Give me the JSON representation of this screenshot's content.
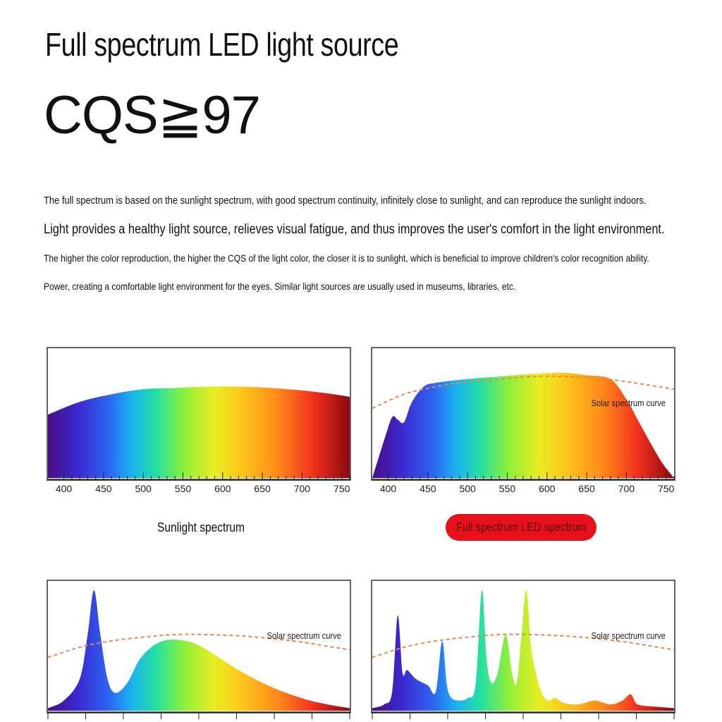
{
  "header": {
    "title": "Full spectrum LED light source",
    "metric": "CQS≧97"
  },
  "paragraphs": [
    "The full spectrum is based on the sunlight spectrum, with good spectrum continuity, infinitely close to sunlight, and can reproduce the sunlight indoors.",
    "Light provides a healthy light source, relieves visual fatigue, and thus improves the user's comfort in the light environment.",
    "The higher the color reproduction, the higher the CQS of the light color, the closer it is to sunlight, which is beneficial to improve children's color recognition ability.",
    "Power, creating a comfortable light environment for the eyes. Similar light sources are usually used in museums, libraries, etc."
  ],
  "colors": {
    "caption_pill_bg": "#e8101a",
    "solar_curve": "#e8874a",
    "frame": "#333333"
  },
  "chart_data": [
    {
      "type": "area",
      "caption": "Sunlight spectrum",
      "ticks": [
        "400",
        "450",
        "500",
        "550",
        "600",
        "650",
        "700",
        "750"
      ],
      "xlim": [
        380,
        760
      ],
      "ylim": [
        0,
        1
      ],
      "series": [
        {
          "x": [
            380,
            420,
            460,
            500,
            540,
            580,
            620,
            660,
            700,
            740,
            760
          ],
          "values": [
            0.5,
            0.6,
            0.66,
            0.7,
            0.71,
            0.72,
            0.72,
            0.71,
            0.69,
            0.66,
            0.64
          ]
        }
      ],
      "solar_curve": null
    },
    {
      "type": "area",
      "caption": "Full spectrum LED spectrum",
      "annotation": "Solar spectrum curve",
      "ticks": [
        "400",
        "450",
        "500",
        "550",
        "600",
        "650",
        "700",
        "750"
      ],
      "xlim": [
        380,
        760
      ],
      "ylim": [
        0,
        1
      ],
      "series": [
        {
          "x": [
            380,
            395,
            405,
            412,
            420,
            430,
            445,
            460,
            500,
            540,
            580,
            620,
            650,
            680,
            700,
            715,
            730,
            745,
            760
          ],
          "values": [
            0.0,
            0.3,
            0.48,
            0.46,
            0.44,
            0.6,
            0.72,
            0.75,
            0.78,
            0.8,
            0.82,
            0.83,
            0.81,
            0.78,
            0.62,
            0.45,
            0.28,
            0.12,
            0.0
          ]
        }
      ],
      "solar_curve": {
        "x": [
          380,
          420,
          460,
          500,
          540,
          580,
          620,
          660,
          700,
          740,
          760
        ],
        "values": [
          0.55,
          0.66,
          0.72,
          0.76,
          0.78,
          0.8,
          0.8,
          0.79,
          0.76,
          0.72,
          0.7
        ]
      }
    },
    {
      "type": "area",
      "caption": "",
      "annotation": "Solar spectrum curve",
      "ticks": [],
      "xlim": [
        380,
        760
      ],
      "ylim": [
        0,
        1
      ],
      "series": [
        {
          "x": [
            380,
            400,
            420,
            430,
            438,
            446,
            455,
            465,
            480,
            495,
            510,
            525,
            540,
            560,
            580,
            600,
            620,
            650,
            680,
            710,
            740,
            760
          ],
          "values": [
            0.02,
            0.08,
            0.25,
            0.6,
            0.95,
            0.6,
            0.25,
            0.14,
            0.22,
            0.4,
            0.5,
            0.55,
            0.56,
            0.54,
            0.48,
            0.4,
            0.32,
            0.22,
            0.14,
            0.08,
            0.04,
            0.02
          ]
        }
      ],
      "solar_curve": {
        "x": [
          380,
          420,
          460,
          500,
          540,
          580,
          620,
          660,
          700,
          740,
          760
        ],
        "values": [
          0.42,
          0.5,
          0.55,
          0.58,
          0.6,
          0.6,
          0.59,
          0.57,
          0.54,
          0.5,
          0.48
        ]
      }
    },
    {
      "type": "area",
      "caption": "",
      "annotation": "Solar spectrum curve",
      "ticks": [],
      "xlim": [
        380,
        760
      ],
      "ylim": [
        0,
        1
      ],
      "series": [
        {
          "x": [
            380,
            395,
            405,
            412,
            418,
            424,
            435,
            450,
            460,
            468,
            474,
            480,
            490,
            500,
            510,
            518,
            524,
            530,
            538,
            548,
            556,
            562,
            568,
            574,
            580,
            588,
            595,
            602,
            610,
            622,
            640,
            660,
            680,
            695,
            705,
            712,
            720,
            740,
            760
          ],
          "values": [
            0.02,
            0.05,
            0.15,
            0.75,
            0.3,
            0.32,
            0.25,
            0.2,
            0.15,
            0.55,
            0.2,
            0.1,
            0.08,
            0.1,
            0.2,
            0.95,
            0.4,
            0.22,
            0.3,
            0.6,
            0.3,
            0.22,
            0.6,
            0.95,
            0.5,
            0.25,
            0.12,
            0.08,
            0.1,
            0.06,
            0.05,
            0.08,
            0.05,
            0.08,
            0.13,
            0.06,
            0.04,
            0.03,
            0.02
          ]
        }
      ],
      "solar_curve": {
        "x": [
          380,
          420,
          460,
          500,
          540,
          580,
          620,
          660,
          700,
          740,
          760
        ],
        "values": [
          0.42,
          0.5,
          0.55,
          0.58,
          0.6,
          0.6,
          0.59,
          0.57,
          0.54,
          0.5,
          0.48
        ]
      }
    }
  ]
}
